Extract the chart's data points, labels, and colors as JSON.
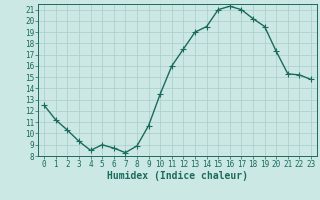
{
  "x": [
    0,
    1,
    2,
    3,
    4,
    5,
    6,
    7,
    8,
    9,
    10,
    11,
    12,
    13,
    14,
    15,
    16,
    17,
    18,
    19,
    20,
    21,
    22,
    23
  ],
  "y": [
    12.5,
    11.2,
    10.3,
    9.3,
    8.5,
    9.0,
    8.7,
    8.3,
    8.9,
    10.7,
    13.5,
    16.0,
    17.5,
    19.0,
    19.5,
    21.0,
    21.3,
    21.0,
    20.2,
    19.5,
    17.3,
    15.3,
    15.2,
    14.8
  ],
  "line_color": "#1a6b5e",
  "marker": "+",
  "marker_size": 4,
  "marker_linewidth": 0.8,
  "background_color": "#cce8e4",
  "grid_color": "#aaccca",
  "tick_color": "#1a6b5e",
  "xlabel": "Humidex (Indice chaleur)",
  "ylim": [
    8,
    21.5
  ],
  "yticks": [
    8,
    9,
    10,
    11,
    12,
    13,
    14,
    15,
    16,
    17,
    18,
    19,
    20,
    21
  ],
  "xticks": [
    0,
    1,
    2,
    3,
    4,
    5,
    6,
    7,
    8,
    9,
    10,
    11,
    12,
    13,
    14,
    15,
    16,
    17,
    18,
    19,
    20,
    21,
    22,
    23
  ],
  "xlim": [
    -0.5,
    23.5
  ],
  "line_width": 1.0,
  "font_size": 5.5,
  "label_font_size": 7.0
}
